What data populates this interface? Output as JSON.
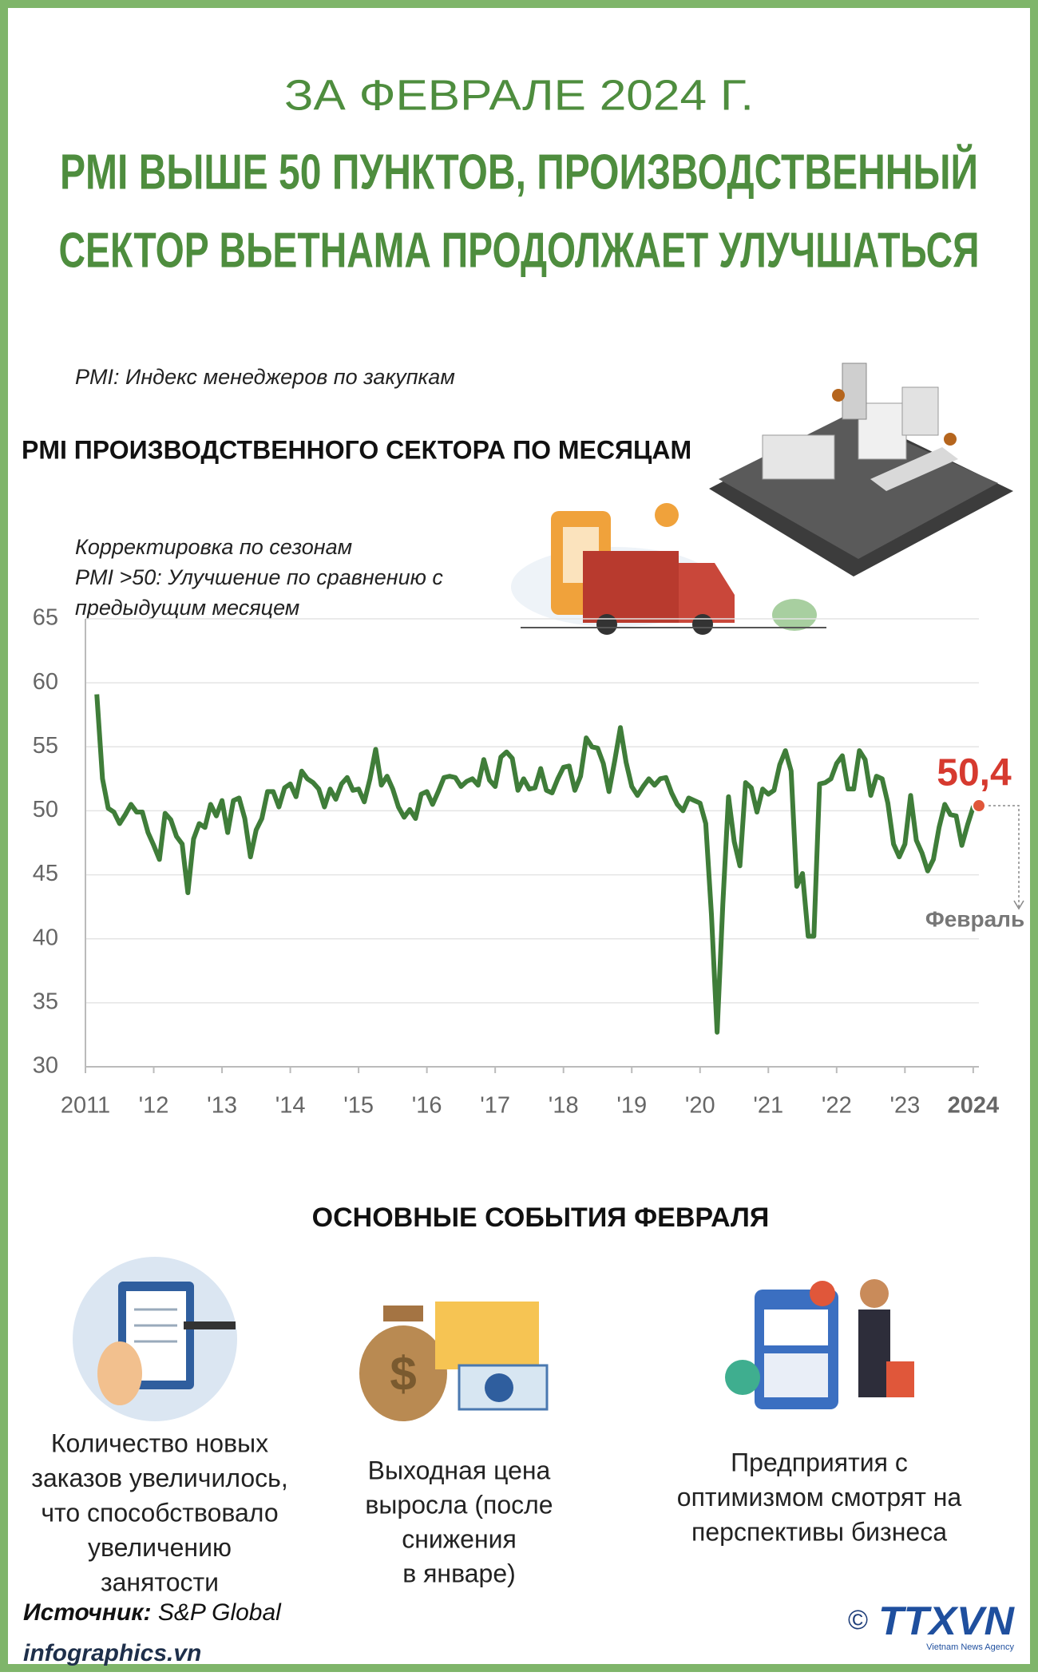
{
  "header": {
    "title_lines": [
      "ЗА ФЕВРАЛЕ 2024 Г.",
      "PMI ВЫШЕ 50 ПУНКТОВ, ПРОИЗВОДСТВЕННЫЙ",
      "СЕКТОР ВЬЕТНАМА ПРОДОЛЖАЕТ УЛУЧШАТЬСЯ"
    ],
    "definition": "PMI: Индекс менеджеров по закупкам"
  },
  "chart_data": {
    "type": "line",
    "title": "PMI ПРОИЗВОДСТВЕННОГО СЕКТОРА ПО МЕСЯЦАМ",
    "subtitle_lines": [
      "Корректировка по сезонам",
      "PMI >50: Улучшение по сравнению с",
      "предыдущим месяцем"
    ],
    "categories": [
      "2011",
      null,
      null,
      null,
      null,
      null,
      null,
      null,
      null,
      null,
      null,
      null,
      "'12",
      null,
      null,
      null,
      null,
      null,
      null,
      null,
      null,
      null,
      null,
      null,
      "'13",
      null,
      null,
      null,
      null,
      null,
      null,
      null,
      null,
      null,
      null,
      null,
      "'14",
      null,
      null,
      null,
      null,
      null,
      null,
      null,
      null,
      null,
      null,
      null,
      "'15",
      null,
      null,
      null,
      null,
      null,
      null,
      null,
      null,
      null,
      null,
      null,
      "'16",
      null,
      null,
      null,
      null,
      null,
      null,
      null,
      null,
      null,
      null,
      null,
      "'17",
      null,
      null,
      null,
      null,
      null,
      null,
      null,
      null,
      null,
      null,
      null,
      "'18",
      null,
      null,
      null,
      null,
      null,
      null,
      null,
      null,
      null,
      null,
      null,
      "'19",
      null,
      null,
      null,
      null,
      null,
      null,
      null,
      null,
      null,
      null,
      null,
      "'20",
      null,
      null,
      null,
      null,
      null,
      null,
      null,
      null,
      null,
      null,
      null,
      "'21",
      null,
      null,
      null,
      null,
      null,
      null,
      null,
      null,
      null,
      null,
      null,
      "'22",
      null,
      null,
      null,
      null,
      null,
      null,
      null,
      null,
      null,
      null,
      null,
      "'23",
      null,
      null,
      null,
      null,
      null,
      null,
      null,
      null,
      null,
      null,
      null,
      "2024",
      null
    ],
    "values": [
      null,
      null,
      59.1,
      52.5,
      50.2,
      49.9,
      49,
      49.7,
      50.5,
      49.9,
      49.9,
      48.3,
      47.3,
      46.2,
      49.8,
      49.3,
      48,
      47.4,
      43.6,
      47.8,
      49,
      48.7,
      50.5,
      49.6,
      50.8,
      48.3,
      50.8,
      51,
      49.4,
      46.4,
      48.5,
      49.4,
      51.5,
      51.5,
      50.3,
      51.8,
      52.1,
      51.1,
      53.1,
      52.5,
      52.2,
      51.7,
      50.3,
      51.7,
      50.9,
      52.1,
      52.6,
      51.6,
      51.7,
      50.7,
      52.5,
      54.8,
      52,
      52.7,
      51.7,
      50.3,
      49.5,
      50.1,
      49.4,
      51.3,
      51.5,
      50.5,
      51.5,
      52.6,
      52.7,
      52.6,
      51.9,
      52.3,
      52.5,
      52,
      54,
      52.4,
      51.9,
      54.2,
      54.6,
      54.1,
      51.6,
      52.5,
      51.7,
      51.8,
      53.3,
      51.6,
      51.4,
      52.5,
      53.4,
      53.5,
      51.6,
      52.7,
      55.7,
      55,
      54.9,
      53.7,
      51.5,
      53.9,
      56.5,
      53.8,
      51.9,
      51.2,
      51.9,
      52.5,
      52,
      52.5,
      52.6,
      51.4,
      50.5,
      50,
      51,
      50.8,
      50.6,
      49,
      41.9,
      32.7,
      42.7,
      51.1,
      47.6,
      45.7,
      52.2,
      51.8,
      49.9,
      51.7,
      51.3,
      51.6,
      53.6,
      54.7,
      53.1,
      44.1,
      45.1,
      40.2,
      40.2,
      52.1,
      52.2,
      52.5,
      53.7,
      54.3,
      51.7,
      51.7,
      54.7,
      54,
      51.2,
      52.7,
      52.5,
      50.6,
      47.4,
      46.4,
      47.4,
      51.2,
      47.7,
      46.7,
      45.3,
      46.2,
      48.7,
      50.5,
      49.7,
      49.6,
      47.3,
      48.9,
      50.3,
      50.4
    ],
    "value_labels": [
      null,
      null,
      null,
      null,
      null,
      null,
      null,
      null,
      null,
      null,
      null,
      null,
      null,
      null,
      null,
      null,
      null,
      null,
      null,
      null,
      null,
      null,
      null,
      null,
      null,
      null,
      null,
      null,
      null,
      null,
      null,
      null,
      null,
      null,
      null,
      null,
      null,
      null,
      null,
      null,
      null,
      null,
      null,
      null,
      null,
      null,
      null,
      null,
      null,
      null,
      null,
      null,
      null,
      null,
      null,
      null,
      null,
      null,
      null,
      null,
      null,
      null,
      null,
      null,
      null,
      null,
      null,
      null,
      null,
      null,
      null,
      null,
      null,
      null,
      null,
      null,
      null,
      null,
      null,
      null,
      null,
      null,
      null,
      null,
      null,
      null,
      null,
      null,
      null,
      null,
      null,
      null,
      null,
      null,
      null,
      null,
      null,
      null,
      null,
      null,
      null,
      null,
      null,
      null,
      null,
      null,
      null,
      null,
      null,
      null,
      null,
      null,
      null,
      null,
      null,
      null,
      null,
      null,
      null,
      null,
      null,
      null,
      null,
      null,
      null,
      null,
      null,
      null,
      null,
      null,
      null,
      null,
      null,
      null,
      null,
      null,
      null,
      null,
      null,
      null,
      null,
      null,
      null,
      null,
      null,
      null,
      null,
      null,
      null,
      null,
      null,
      null,
      null,
      null,
      null,
      null,
      null,
      "50,4"
    ],
    "annotation": "Февраль",
    "color": "#3f7d39",
    "highlight_color": "#e0573a",
    "label_color": "#d63a2f",
    "ylim": [
      30,
      65
    ],
    "yticks": [
      30,
      35,
      40,
      45,
      50,
      55,
      60,
      65
    ],
    "grid": true
  },
  "events": {
    "title": "ОСНОВНЫЕ СОБЫТИЯ ФЕВРАЛЯ",
    "items": [
      {
        "lines": [
          "Количество новых",
          "заказов увеличилось,",
          "что способствовало",
          "увеличению",
          "занятости"
        ]
      },
      {
        "lines": [
          "Выходная цена",
          "выросла (после",
          "снижения",
          "в январе)"
        ]
      },
      {
        "lines": [
          "Предприятия с",
          "оптимизмом смотрят на",
          "перспективы бизнеса"
        ]
      }
    ]
  },
  "footer": {
    "source_label": "Источник:",
    "source": "S&P Global",
    "site": "infographics.vn",
    "copyright": "©",
    "agency": "TTXVN",
    "agency_sub": "Vietnam News Agency"
  }
}
